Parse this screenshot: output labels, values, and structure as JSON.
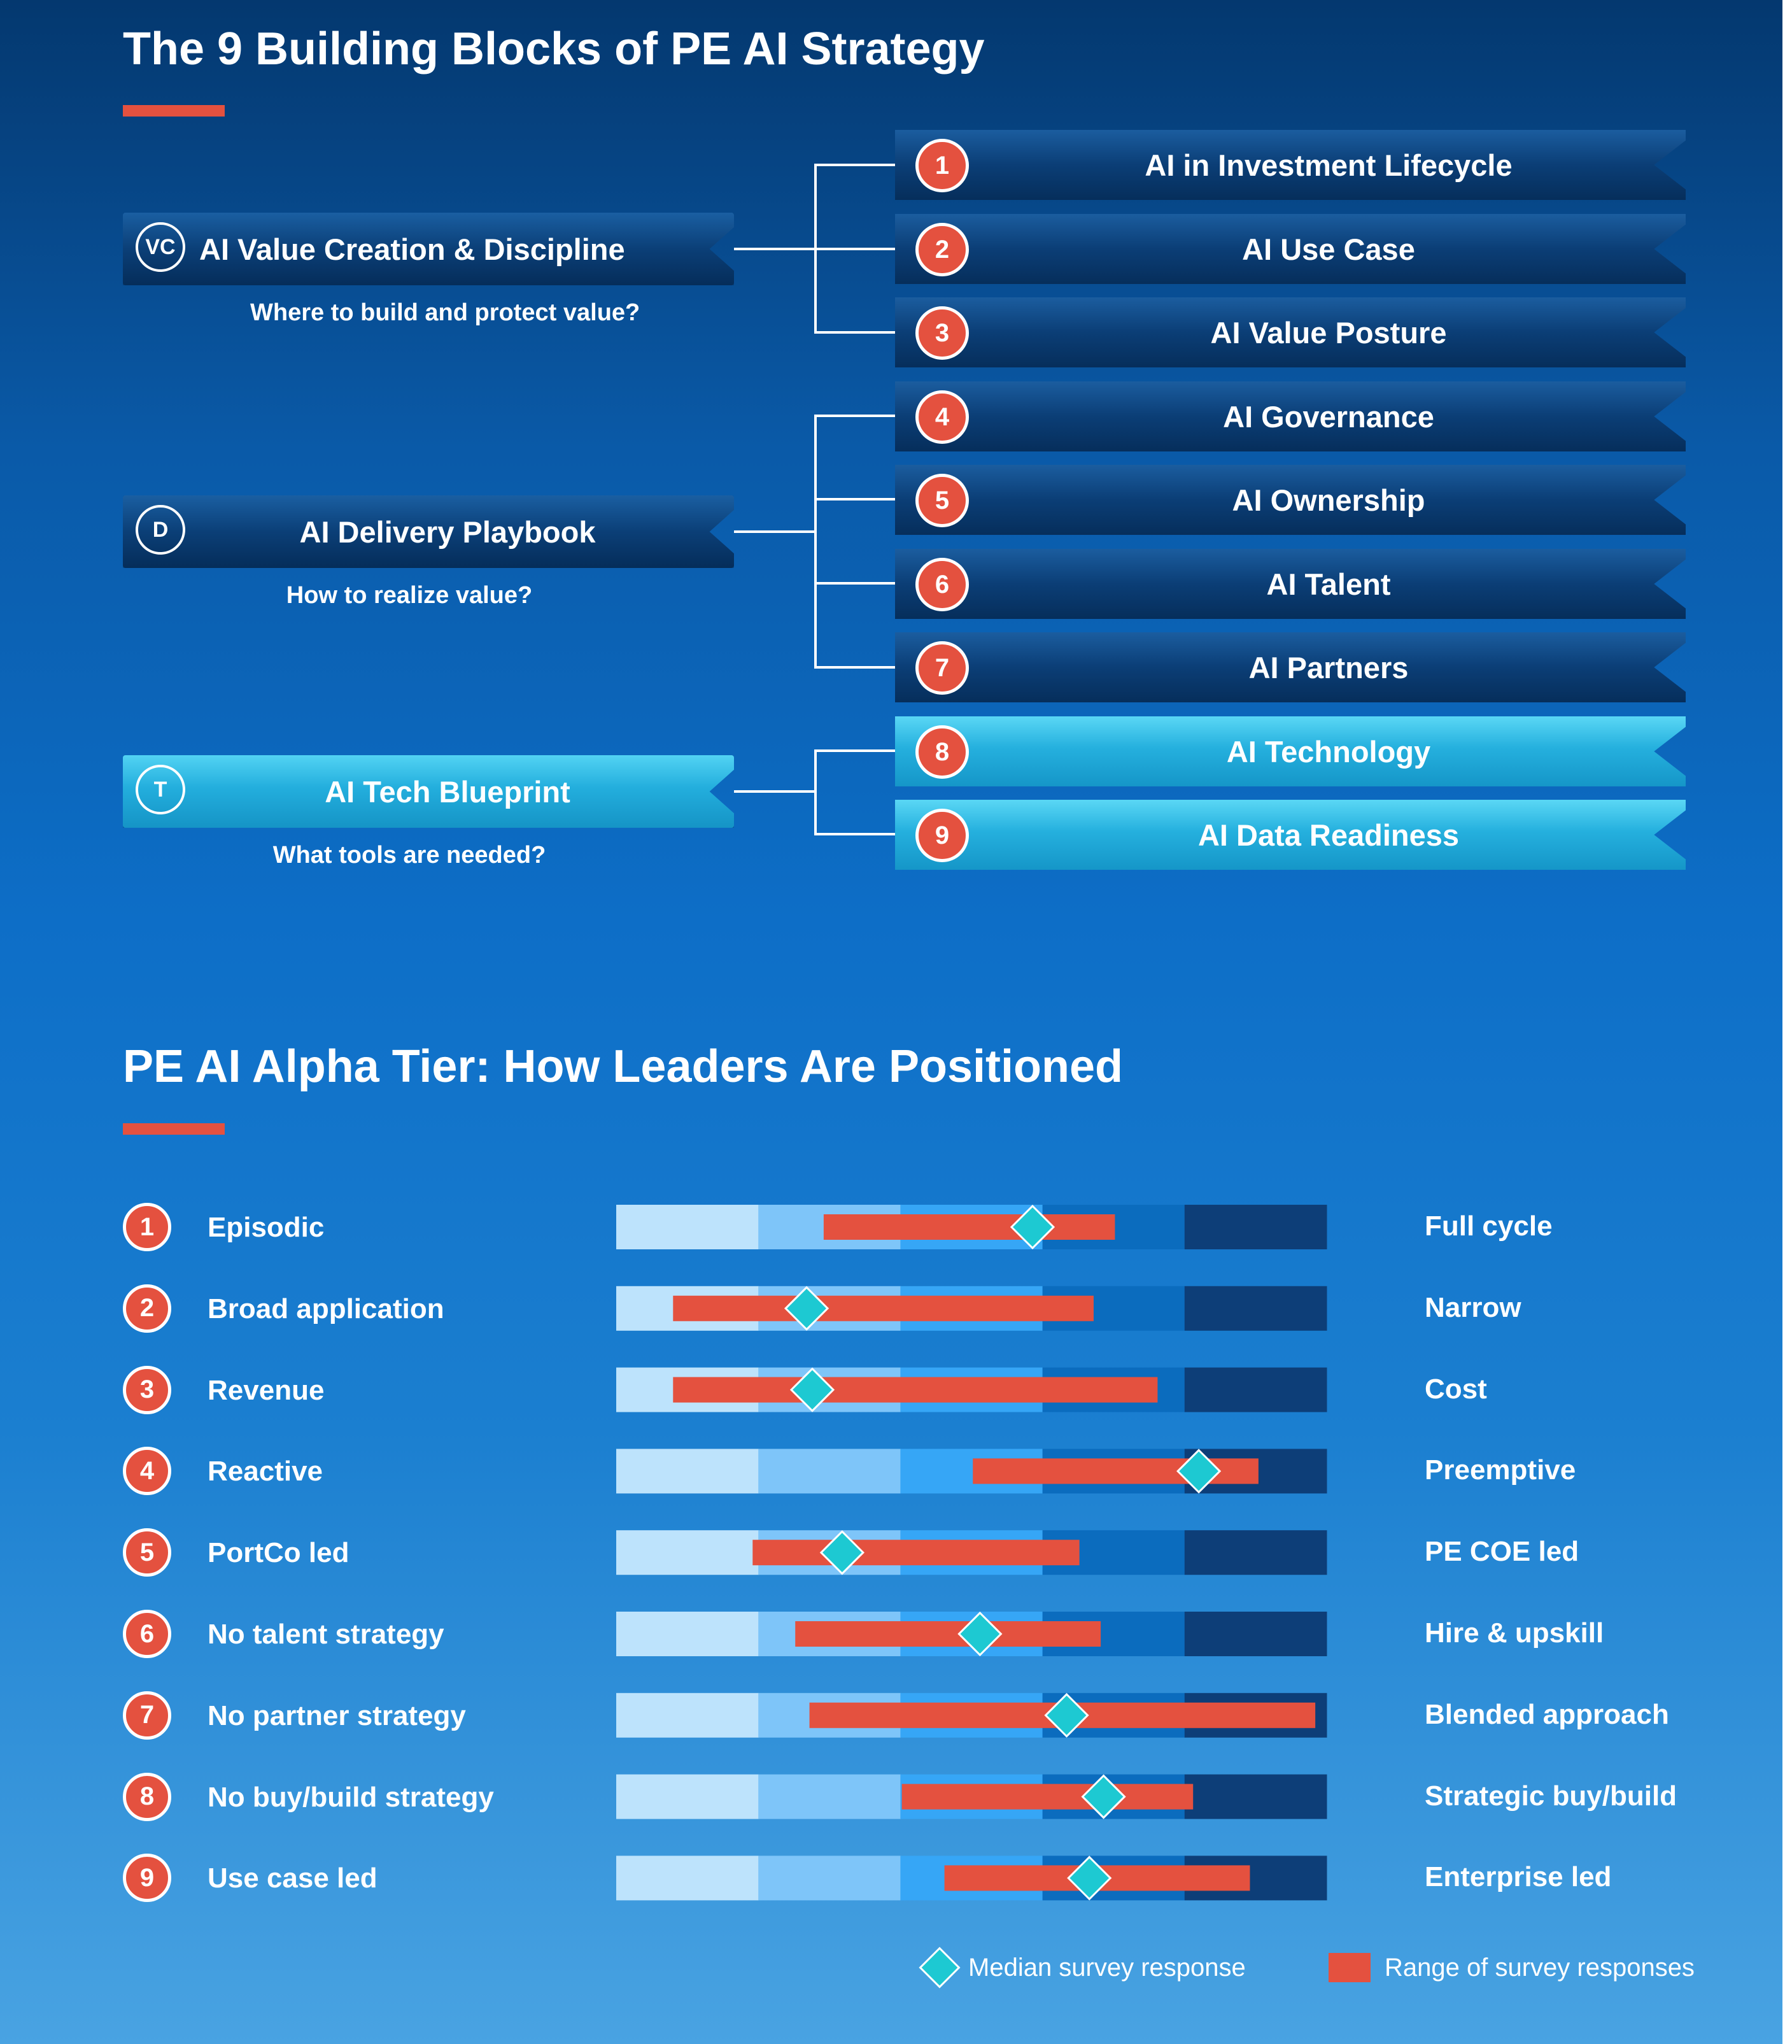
{
  "section1": {
    "title": "The 9 Building Blocks of PE AI Strategy",
    "pillars": [
      {
        "badge": "VC",
        "title": "AI Value Creation & Discipline",
        "subtitle": "Where to build and protect value?"
      },
      {
        "badge": "D",
        "title": "AI Delivery Playbook",
        "subtitle": "How to realize value?"
      },
      {
        "badge": "T",
        "title": "AI Tech Blueprint",
        "subtitle": "What tools are needed?"
      }
    ],
    "blocks": [
      {
        "num": "1",
        "title": "AI in Investment Lifecycle"
      },
      {
        "num": "2",
        "title": "AI Use Case"
      },
      {
        "num": "3",
        "title": "AI Value Posture"
      },
      {
        "num": "4",
        "title": "AI Governance"
      },
      {
        "num": "5",
        "title": "AI Ownership"
      },
      {
        "num": "6",
        "title": "AI Talent"
      },
      {
        "num": "7",
        "title": "AI Partners"
      },
      {
        "num": "8",
        "title": "AI Technology"
      },
      {
        "num": "9",
        "title": "AI Data Readiness"
      }
    ]
  },
  "section2": {
    "title": "PE AI Alpha Tier: How Leaders Are Positioned"
  },
  "chart_data": {
    "type": "range",
    "title": "PE AI Alpha Tier: How Leaders Are Positioned",
    "scale": [
      0,
      5
    ],
    "band_colors": [
      "#bde3fc",
      "#7ec5f9",
      "#36a6f6",
      "#0b6cbe",
      "#0d3e78"
    ],
    "range_color": "#e4513f",
    "median_color": "#1dc9d2",
    "rows": [
      {
        "num": "1",
        "left": "Episodic",
        "right": "Full cycle",
        "range": [
          1.46,
          3.51
        ],
        "median": 2.93,
        "highlight_bands": 4
      },
      {
        "num": "2",
        "left": "Broad application",
        "right": "Narrow",
        "range": [
          0.4,
          3.36
        ],
        "median": 1.34,
        "highlight_bands": 3
      },
      {
        "num": "3",
        "left": "Revenue",
        "right": "Cost",
        "range": [
          0.4,
          3.81
        ],
        "median": 1.38,
        "highlight_bands": 3
      },
      {
        "num": "4",
        "left": "Reactive",
        "right": "Preemptive",
        "range": [
          2.51,
          4.52
        ],
        "median": 4.1,
        "highlight_bands": 3
      },
      {
        "num": "5",
        "left": "PortCo led",
        "right": "PE COE led",
        "range": [
          0.96,
          3.26
        ],
        "median": 1.59,
        "highlight_bands": 3
      },
      {
        "num": "6",
        "left": "No talent strategy",
        "right": "Hire & upskill",
        "range": [
          1.26,
          3.41
        ],
        "median": 2.56,
        "highlight_bands": 3
      },
      {
        "num": "7",
        "left": "No partner strategy",
        "right": "Blended approach",
        "range": [
          1.36,
          4.92
        ],
        "median": 3.17,
        "highlight_bands": 3
      },
      {
        "num": "8",
        "left": "No buy/build strategy",
        "right": "Strategic buy/build",
        "range": [
          2.01,
          4.06
        ],
        "median": 3.43,
        "highlight_bands": 3
      },
      {
        "num": "9",
        "left": "Use case led",
        "right": "Enterprise led",
        "range": [
          2.31,
          4.46
        ],
        "median": 3.33,
        "highlight_bands": 3
      }
    ],
    "legend": {
      "median": "Median survey response",
      "range": "Range of survey responses"
    }
  }
}
